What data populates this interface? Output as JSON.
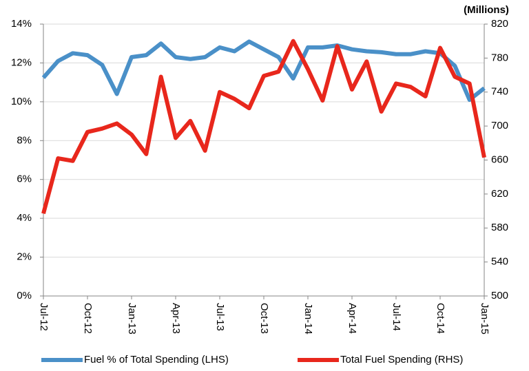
{
  "chart_data": {
    "type": "line",
    "categories": [
      "Jul-12",
      null,
      null,
      "Oct-12",
      null,
      null,
      "Jan-13",
      null,
      null,
      "Apr-13",
      null,
      null,
      "Jul-13",
      null,
      null,
      "Oct-13",
      null,
      null,
      "Jan-14",
      null,
      null,
      "Apr-14",
      null,
      null,
      "Jul-14",
      null,
      null,
      "Oct-14",
      null,
      null,
      "Jan-15"
    ],
    "series": [
      {
        "name": "Fuel % of Total Spending (LHS)",
        "color": "#4a90c8",
        "values": [
          11.24,
          12.1,
          12.5,
          12.4,
          11.9,
          10.4,
          12.3,
          12.4,
          13.0,
          12.3,
          12.2,
          12.3,
          12.8,
          12.6,
          13.1,
          12.7,
          12.3,
          11.2,
          12.8,
          12.8,
          12.9,
          12.7,
          12.6,
          12.55,
          12.45,
          12.45,
          12.6,
          12.5,
          11.85,
          10.1,
          10.7
        ]
      },
      {
        "name": "Total Fuel Spending (RHS)",
        "color": "#e8271c",
        "axis": "y2",
        "values": [
          597,
          662,
          659,
          693,
          697,
          703,
          690,
          667,
          758,
          686,
          706,
          671,
          740,
          732,
          721,
          759,
          764,
          800,
          767,
          730,
          794,
          743,
          776,
          717,
          750,
          746,
          735,
          792,
          758,
          750,
          663
        ]
      }
    ],
    "ylim": [
      0,
      14
    ],
    "yticks": [
      {
        "value": 0,
        "label": "0%"
      },
      {
        "value": 2,
        "label": "2%"
      },
      {
        "value": 4,
        "label": "4%"
      },
      {
        "value": 6,
        "label": "6%"
      },
      {
        "value": 8,
        "label": "8%"
      },
      {
        "value": 10,
        "label": "10%"
      },
      {
        "value": 12,
        "label": "12%"
      },
      {
        "value": 14,
        "label": "14%"
      }
    ],
    "y2lim": [
      500,
      820
    ],
    "y2ticks": [
      500,
      540,
      580,
      620,
      660,
      700,
      740,
      780,
      820
    ],
    "y2label": "(Millions)",
    "grid": true
  }
}
